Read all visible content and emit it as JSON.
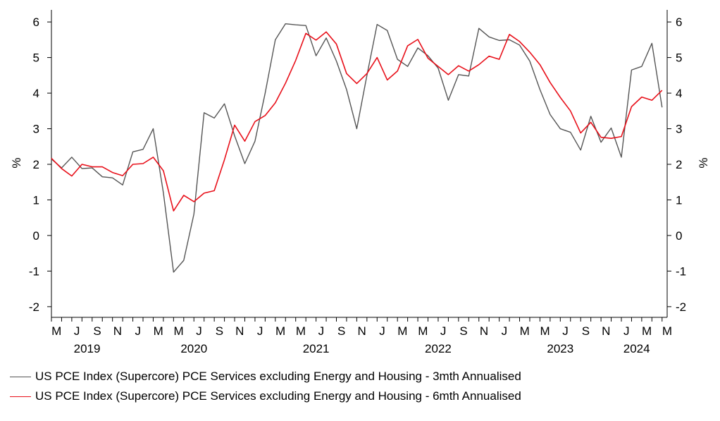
{
  "chart_data": {
    "type": "line",
    "title": "",
    "ylabel_left": "%",
    "ylabel_right": "%",
    "ylim": [
      -2.3,
      6.3
    ],
    "yticks": [
      -2,
      -1,
      0,
      1,
      2,
      3,
      4,
      5,
      6
    ],
    "ytick_labels": [
      "-2",
      "-1",
      "0",
      "1",
      "2",
      "3",
      "4",
      "5",
      "6"
    ],
    "xlim_months": [
      0,
      60.5
    ],
    "x_month_labels": [
      "M",
      "J",
      "S",
      "N",
      "J",
      "M",
      "M",
      "J",
      "S",
      "N",
      "J",
      "M",
      "M",
      "J",
      "S",
      "N",
      "J",
      "M",
      "M",
      "J",
      "S",
      "N",
      "J",
      "M",
      "M",
      "J",
      "S",
      "N",
      "J",
      "M",
      "M"
    ],
    "x_year_labels": [
      "2019",
      "2020",
      "2021",
      "2022",
      "2023",
      "2024"
    ],
    "x_year_label_positions": [
      3.5,
      14,
      26,
      38,
      50,
      57.5
    ],
    "x_month_label_start": 0.5,
    "x_month_label_step": 2,
    "x_start": "Feb 2019",
    "series": [
      {
        "name": "US PCE Index (Supercore) PCE Services excluding Energy and Housing - 3mth Annualised",
        "color": "#555555",
        "values": [
          2.15,
          1.9,
          2.2,
          1.88,
          1.9,
          1.65,
          1.62,
          1.42,
          2.35,
          2.42,
          3.0,
          1.2,
          -1.03,
          -0.7,
          0.6,
          3.45,
          3.3,
          3.7,
          2.8,
          2.02,
          2.65,
          4.0,
          5.5,
          5.95,
          5.92,
          5.9,
          5.05,
          5.55,
          4.9,
          4.1,
          3.0,
          4.5,
          5.93,
          5.76,
          4.95,
          4.75,
          5.27,
          5.05,
          4.7,
          3.8,
          4.52,
          4.48,
          5.82,
          5.58,
          5.48,
          5.5,
          5.35,
          4.9,
          4.1,
          3.4,
          3.0,
          2.9,
          2.4,
          3.35,
          2.62,
          3.02,
          2.2,
          4.65,
          4.75,
          5.4,
          3.6
        ]
      },
      {
        "name": "US PCE Index (Supercore) PCE Services excluding Energy and Housing - 6mth Annualised",
        "color": "#e8101a",
        "values": [
          2.17,
          1.88,
          1.67,
          2.0,
          1.93,
          1.93,
          1.77,
          1.68,
          2.0,
          2.02,
          2.2,
          1.82,
          0.69,
          1.13,
          0.95,
          1.19,
          1.26,
          2.13,
          3.1,
          2.65,
          3.2,
          3.37,
          3.73,
          4.28,
          4.92,
          5.68,
          5.49,
          5.72,
          5.38,
          4.55,
          4.27,
          4.55,
          5.0,
          4.37,
          4.62,
          5.33,
          5.51,
          4.98,
          4.75,
          4.52,
          4.77,
          4.62,
          4.8,
          5.04,
          4.95,
          5.65,
          5.45,
          5.15,
          4.8,
          4.3,
          3.88,
          3.5,
          2.88,
          3.18,
          2.76,
          2.73,
          2.78,
          3.62,
          3.89,
          3.8,
          4.08
        ]
      }
    ]
  },
  "legend": {
    "items": [
      {
        "label": "US PCE Index (Supercore) PCE Services excluding Energy and Housing - 3mth Annualised",
        "color": "#555555"
      },
      {
        "label": "US PCE Index (Supercore) PCE Services excluding Energy and Housing - 6mth Annualised",
        "color": "#e8101a"
      }
    ]
  }
}
